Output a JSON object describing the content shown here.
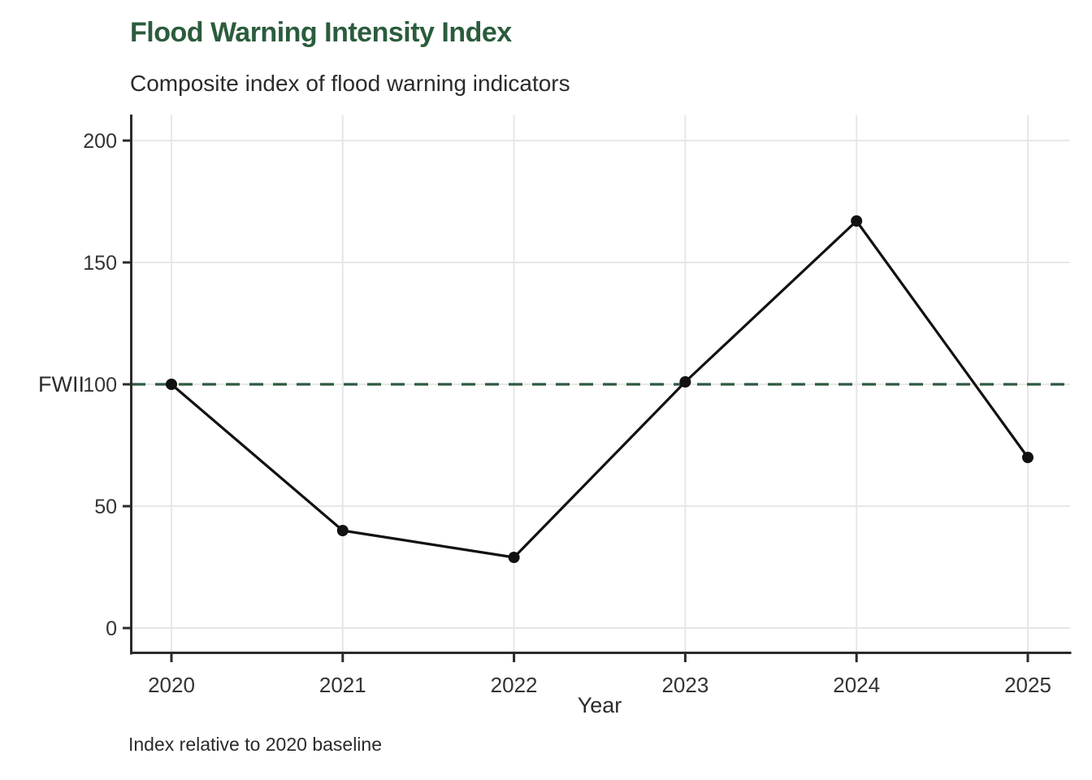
{
  "chart_data": {
    "type": "line",
    "title": "Flood Warning Intensity Index",
    "subtitle": "Composite index of flood warning indicators",
    "caption": "Index relative to 2020 baseline",
    "xlabel": "Year",
    "ylabel": "FWII",
    "x": [
      2020,
      2021,
      2022,
      2023,
      2024,
      2025
    ],
    "series": [
      {
        "name": "FWII",
        "values": [
          100,
          40,
          29,
          101,
          167,
          70
        ]
      }
    ],
    "baseline_value": 100,
    "ylim": [
      0,
      200
    ],
    "yticks": [
      0,
      50,
      100,
      150,
      200
    ],
    "grid": true,
    "legend_position": "none",
    "colors": {
      "title": "#2b5c3c",
      "subtitle": "#2b2b2b",
      "caption": "#2b2b2b",
      "line": "#111111",
      "point": "#111111",
      "baseline": "#2e5a40",
      "grid": "#e7e7e7",
      "axis": "#2b2b2b",
      "tick_text": "#333333",
      "background": "#ffffff"
    }
  }
}
